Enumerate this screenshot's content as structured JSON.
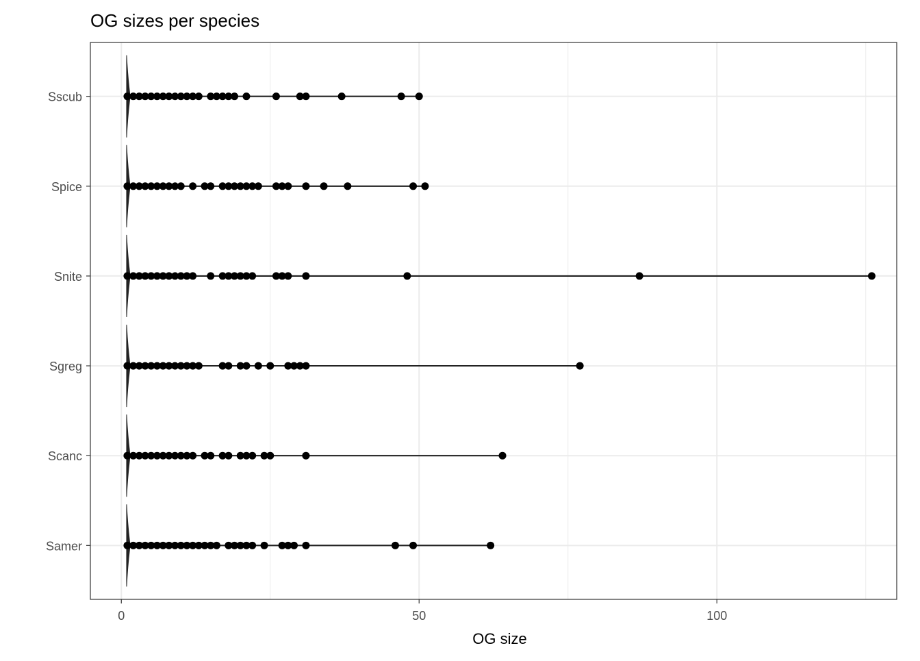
{
  "chart_data": {
    "type": "scatter",
    "subtype": "violin with jittered points",
    "title": "OG sizes per species",
    "xlabel": "OG size",
    "ylabel": "",
    "xlim": [
      -5.2,
      130.2
    ],
    "xticks": [
      0,
      50,
      100
    ],
    "grid": true,
    "categories": [
      "Samer",
      "Scanc",
      "Sgreg",
      "Snite",
      "Spice",
      "Sscub"
    ],
    "series": [
      {
        "name": "Samer",
        "values": [
          1,
          2,
          3,
          4,
          5,
          6,
          7,
          8,
          9,
          10,
          11,
          12,
          13,
          14,
          15,
          16,
          18,
          19,
          20,
          21,
          22,
          24,
          27,
          28,
          29,
          31,
          46,
          49,
          62
        ]
      },
      {
        "name": "Scanc",
        "values": [
          1,
          2,
          3,
          4,
          5,
          6,
          7,
          8,
          9,
          10,
          11,
          12,
          14,
          15,
          17,
          18,
          20,
          21,
          22,
          24,
          25,
          31,
          64
        ]
      },
      {
        "name": "Sgreg",
        "values": [
          1,
          2,
          3,
          4,
          5,
          6,
          7,
          8,
          9,
          10,
          11,
          12,
          13,
          17,
          18,
          20,
          21,
          23,
          25,
          28,
          29,
          30,
          31,
          77
        ]
      },
      {
        "name": "Snite",
        "values": [
          1,
          2,
          3,
          4,
          5,
          6,
          7,
          8,
          9,
          10,
          11,
          12,
          15,
          17,
          18,
          19,
          20,
          21,
          22,
          26,
          27,
          28,
          31,
          48,
          87,
          126
        ]
      },
      {
        "name": "Spice",
        "values": [
          1,
          2,
          3,
          4,
          5,
          6,
          7,
          8,
          9,
          10,
          12,
          14,
          15,
          17,
          18,
          19,
          20,
          21,
          22,
          23,
          26,
          27,
          28,
          31,
          34,
          38,
          49,
          51
        ]
      },
      {
        "name": "Sscub",
        "values": [
          1,
          2,
          3,
          4,
          5,
          6,
          7,
          8,
          9,
          10,
          11,
          12,
          13,
          15,
          16,
          17,
          18,
          19,
          21,
          26,
          30,
          31,
          37,
          47,
          50
        ]
      }
    ],
    "colors": {
      "point": "#000000",
      "line": "#222222",
      "grid": "#ebebeb",
      "panel_border": "#333333"
    }
  }
}
